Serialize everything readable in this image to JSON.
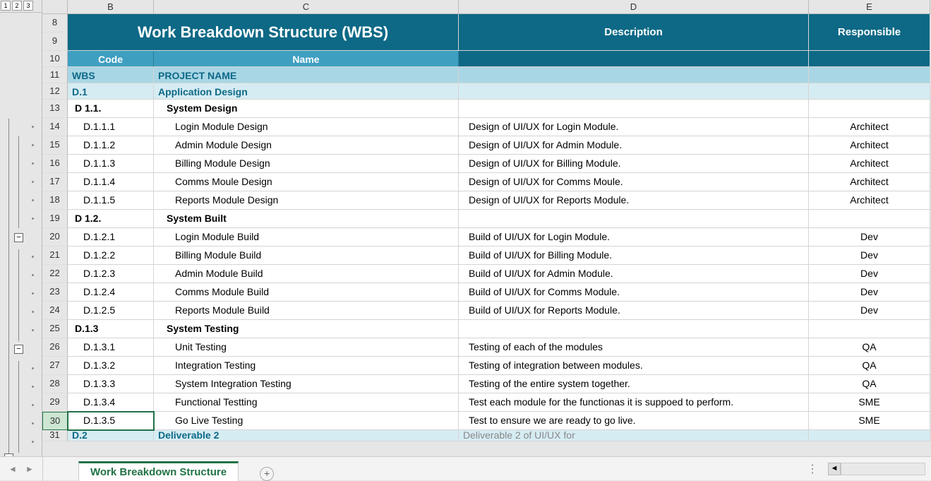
{
  "outline_levels": [
    "1",
    "2",
    "3"
  ],
  "columns": {
    "B": "B",
    "C": "C",
    "D": "D",
    "E": "E"
  },
  "title": "Work Breakdown Structure (WBS)",
  "headers": {
    "description": "Description",
    "responsible": "Responsible"
  },
  "subheaders": {
    "code": "Code",
    "name": "Name"
  },
  "row_numbers": [
    "8",
    "9",
    "10",
    "11",
    "12",
    "13",
    "14",
    "15",
    "16",
    "17",
    "18",
    "19",
    "20",
    "21",
    "22",
    "23",
    "24",
    "25",
    "26",
    "27",
    "28",
    "29",
    "30",
    "31"
  ],
  "wbs_row": {
    "code": "WBS",
    "name": "PROJECT NAME",
    "description": "",
    "responsible": ""
  },
  "d1_row": {
    "code": "D.1",
    "name": "Application Design",
    "description": "",
    "responsible": ""
  },
  "groups": [
    {
      "code": "D 1.1.",
      "name": "System Design",
      "items": [
        {
          "code": "D.1.1.1",
          "name": "Login Module Design",
          "description": "Design of UI/UX for Login Module.",
          "responsible": "Architect"
        },
        {
          "code": "D.1.1.2",
          "name": "Admin Module Design",
          "description": "Design of UI/UX for Admin Module.",
          "responsible": "Architect"
        },
        {
          "code": "D.1.1.3",
          "name": "Billing Module Design",
          "description": "Design of UI/UX for Billing Module.",
          "responsible": "Architect"
        },
        {
          "code": "D.1.1.4",
          "name": "Comms Moule Design",
          "description": "Design of UI/UX for Comms Moule.",
          "responsible": "Architect"
        },
        {
          "code": "D.1.1.5",
          "name": "Reports Module Design",
          "description": "Design of UI/UX for Reports Module.",
          "responsible": "Architect"
        }
      ]
    },
    {
      "code": "D 1.2.",
      "name": "System Built",
      "items": [
        {
          "code": "D.1.2.1",
          "name": "Login Module Build",
          "description": "Build of UI/UX for Login Module.",
          "responsible": "Dev"
        },
        {
          "code": "D.1.2.2",
          "name": "Billing Module Build",
          "description": "Build of UI/UX for Billing Module.",
          "responsible": "Dev"
        },
        {
          "code": "D.1.2.3",
          "name": "Admin Module Build",
          "description": "Build of UI/UX for Admin Module.",
          "responsible": "Dev"
        },
        {
          "code": "D.1.2.4",
          "name": "Comms Module Build",
          "description": "Build of UI/UX for Comms Module.",
          "responsible": "Dev"
        },
        {
          "code": "D.1.2.5",
          "name": "Reports Module Build",
          "description": "Build of UI/UX for Reports Module.",
          "responsible": "Dev"
        }
      ]
    },
    {
      "code": "D.1.3",
      "name": "System Testing",
      "items": [
        {
          "code": "D.1.3.1",
          "name": "Unit Testing",
          "description": "Testing of each of the modules",
          "responsible": "QA"
        },
        {
          "code": "D.1.3.2",
          "name": "Integration Testing",
          "description": "Testing of integration between modules.",
          "responsible": "QA"
        },
        {
          "code": "D.1.3.3",
          "name": "System Integration Testing",
          "description": "Testing of the entire system together.",
          "responsible": "QA"
        },
        {
          "code": "D.1.3.4",
          "name": "Functional Testting",
          "description": "Test each module for the functionas it is suppoed to perform.",
          "responsible": "SME"
        },
        {
          "code": "D.1.3.5",
          "name": "Go Live Testing",
          "description": "Test to ensure we are ready to go live.",
          "responsible": "SME"
        }
      ]
    }
  ],
  "d2_row": {
    "code": "D.2",
    "name": "Deliverable 2",
    "description": "Deliverable 2 of UI/UX for",
    "responsible": ""
  },
  "sheet_tab": "Work Breakdown Structure",
  "colors": {
    "teal_dark": "#0d6986",
    "teal_mid": "#3f9fc1",
    "teal_light1": "#a9d6e5",
    "teal_light2": "#d6ecf3",
    "excel_green": "#217346",
    "bg": "#e6e6e6"
  }
}
